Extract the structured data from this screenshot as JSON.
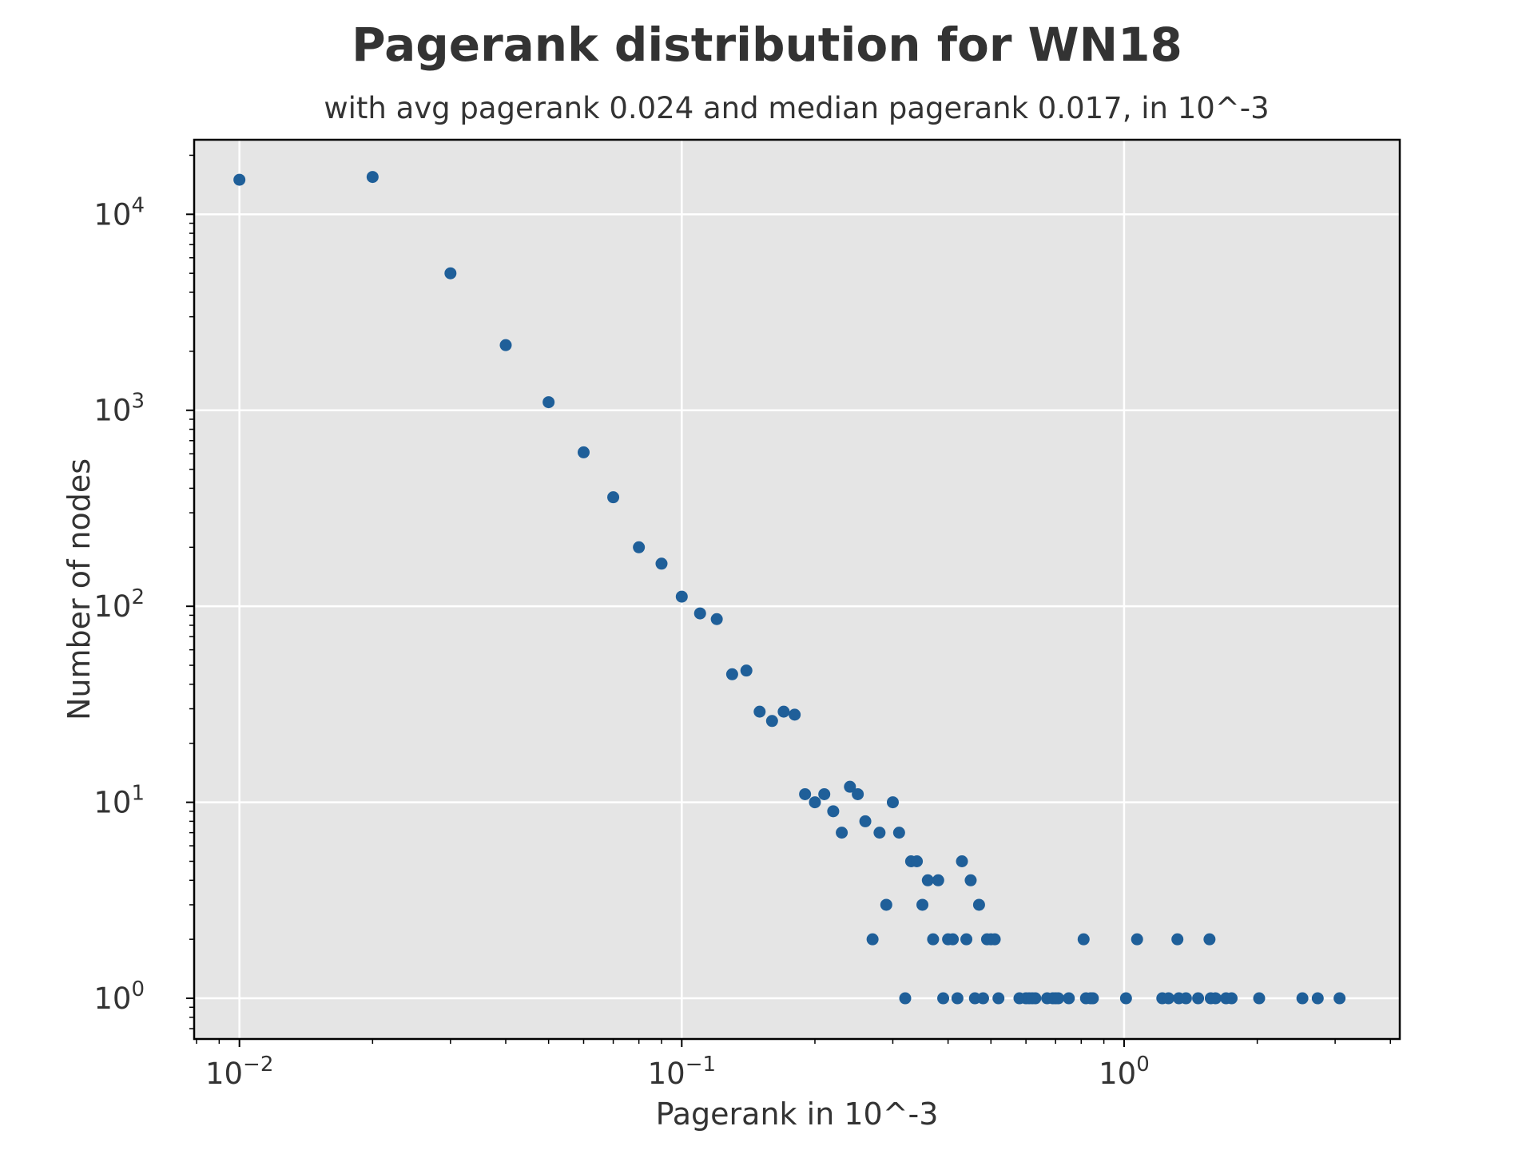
{
  "chart_data": {
    "type": "scatter",
    "title": "Pagerank distribution for WN18",
    "subtitle": "with avg pagerank 0.024 and median pagerank 0.017, in 10^-3",
    "xlabel": "Pagerank in 10^-3",
    "ylabel": "Number of nodes",
    "xscale": "log",
    "yscale": "log",
    "xlim": [
      0.0079,
      4.2
    ],
    "ylim": [
      0.62,
      24000
    ],
    "grid": true,
    "x_ticks": [
      {
        "value": 0.01,
        "base": "10",
        "exp": "−2"
      },
      {
        "value": 0.1,
        "base": "10",
        "exp": "−1"
      },
      {
        "value": 1,
        "base": "10",
        "exp": "0"
      }
    ],
    "y_ticks": [
      {
        "value": 1,
        "base": "10",
        "exp": "0"
      },
      {
        "value": 10,
        "base": "10",
        "exp": "1"
      },
      {
        "value": 100,
        "base": "10",
        "exp": "2"
      },
      {
        "value": 1000,
        "base": "10",
        "exp": "3"
      },
      {
        "value": 10000,
        "base": "10",
        "exp": "4"
      }
    ],
    "colors": {
      "marker": "#1f5f99",
      "plot_bg": "#e5e5e5",
      "grid": "#ffffff",
      "text": "#333333"
    },
    "points": [
      [
        0.01,
        15000
      ],
      [
        0.02,
        15500
      ],
      [
        0.03,
        5000
      ],
      [
        0.04,
        2150
      ],
      [
        0.05,
        1100
      ],
      [
        0.06,
        610
      ],
      [
        0.07,
        360
      ],
      [
        0.08,
        200
      ],
      [
        0.09,
        165
      ],
      [
        0.1,
        112
      ],
      [
        0.11,
        92
      ],
      [
        0.12,
        86
      ],
      [
        0.13,
        45
      ],
      [
        0.14,
        47
      ],
      [
        0.15,
        29
      ],
      [
        0.16,
        26
      ],
      [
        0.17,
        29
      ],
      [
        0.18,
        28
      ],
      [
        0.19,
        11
      ],
      [
        0.2,
        10
      ],
      [
        0.21,
        11
      ],
      [
        0.22,
        9
      ],
      [
        0.23,
        7
      ],
      [
        0.24,
        12
      ],
      [
        0.25,
        11
      ],
      [
        0.26,
        8
      ],
      [
        0.27,
        2
      ],
      [
        0.28,
        7
      ],
      [
        0.29,
        3
      ],
      [
        0.3,
        10
      ],
      [
        0.31,
        7
      ],
      [
        0.32,
        1
      ],
      [
        0.33,
        5
      ],
      [
        0.34,
        5
      ],
      [
        0.35,
        3
      ],
      [
        0.36,
        4
      ],
      [
        0.37,
        2
      ],
      [
        0.38,
        4
      ],
      [
        0.39,
        1
      ],
      [
        0.4,
        2
      ],
      [
        0.41,
        2
      ],
      [
        0.42,
        1
      ],
      [
        0.43,
        5
      ],
      [
        0.44,
        2
      ],
      [
        0.45,
        4
      ],
      [
        0.46,
        1
      ],
      [
        0.47,
        3
      ],
      [
        0.48,
        1
      ],
      [
        0.49,
        2
      ],
      [
        0.5,
        2
      ],
      [
        0.51,
        2
      ],
      [
        0.52,
        1
      ],
      [
        0.58,
        1
      ],
      [
        0.6,
        1
      ],
      [
        0.61,
        1
      ],
      [
        0.62,
        1
      ],
      [
        0.63,
        1
      ],
      [
        0.67,
        1
      ],
      [
        0.69,
        1
      ],
      [
        0.7,
        1
      ],
      [
        0.71,
        1
      ],
      [
        0.75,
        1
      ],
      [
        0.81,
        2
      ],
      [
        0.82,
        1
      ],
      [
        0.84,
        1
      ],
      [
        0.85,
        1
      ],
      [
        1.01,
        1
      ],
      [
        1.07,
        2
      ],
      [
        1.22,
        1
      ],
      [
        1.26,
        1
      ],
      [
        1.32,
        2
      ],
      [
        1.33,
        1
      ],
      [
        1.38,
        1
      ],
      [
        1.47,
        1
      ],
      [
        1.56,
        2
      ],
      [
        1.57,
        1
      ],
      [
        1.61,
        1
      ],
      [
        1.7,
        1
      ],
      [
        1.75,
        1
      ],
      [
        2.02,
        1
      ],
      [
        2.53,
        1
      ],
      [
        2.74,
        1
      ],
      [
        3.07,
        1
      ]
    ]
  }
}
